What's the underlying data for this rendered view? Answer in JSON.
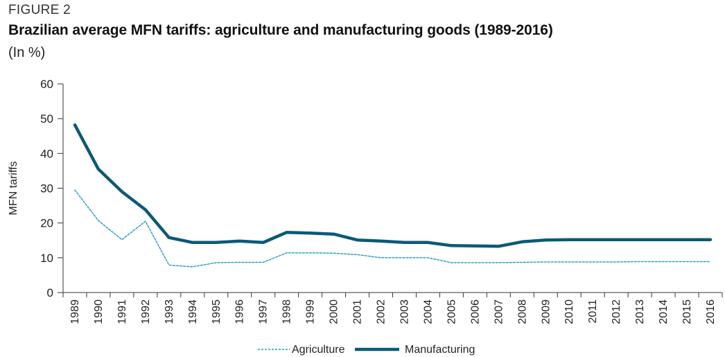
{
  "figure_label": "FIGURE 2",
  "title": "Brazilian average MFN tariffs: agriculture and manufacturing goods (1989-2016)",
  "subtitle": "(In %)",
  "chart_data": {
    "type": "line",
    "ylabel": "MFN tariffs",
    "xlabel": "",
    "ylim": [
      0,
      60
    ],
    "yticks": [
      0,
      10,
      20,
      30,
      40,
      50,
      60
    ],
    "grid": false,
    "legend_placement": "bottom",
    "x": [
      "1989",
      "1990",
      "1991",
      "1992",
      "1993",
      "1994",
      "1995",
      "1996",
      "1997",
      "1998",
      "1999",
      "2000",
      "2001",
      "2002",
      "2003",
      "2004",
      "2005",
      "2006",
      "2007",
      "2008",
      "2009",
      "2010",
      "2011",
      "2012",
      "2013",
      "2014",
      "2015",
      "2016"
    ],
    "series": [
      {
        "name": "Agriculture",
        "color": "#1a9bc4",
        "style": "dashed",
        "values": [
          29.5,
          20.7,
          15.2,
          20.5,
          7.9,
          7.4,
          8.6,
          8.7,
          8.7,
          11.4,
          11.4,
          11.3,
          10.9,
          10.0,
          10.0,
          10.0,
          8.6,
          8.6,
          8.6,
          8.7,
          8.8,
          8.8,
          8.8,
          8.8,
          8.9,
          8.9,
          8.9,
          8.9
        ]
      },
      {
        "name": "Manufacturing",
        "color": "#0b5a78",
        "style": "solid",
        "values": [
          48.2,
          35.5,
          29.0,
          23.8,
          15.8,
          14.4,
          14.4,
          14.8,
          14.4,
          17.3,
          17.1,
          16.8,
          15.1,
          14.8,
          14.4,
          14.4,
          13.5,
          13.4,
          13.3,
          14.6,
          15.1,
          15.2,
          15.2,
          15.2,
          15.2,
          15.2,
          15.2,
          15.2
        ]
      }
    ]
  }
}
